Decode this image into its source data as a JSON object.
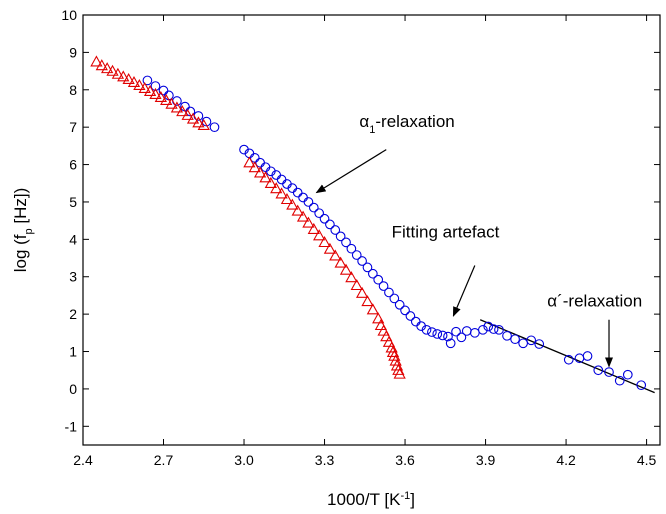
{
  "chart_data": {
    "type": "scatter",
    "xlabel": "1000/T [K",
    "xlabel_sup": "-1",
    "xlabel_tail": "]",
    "ylabel_pre": "log (f",
    "ylabel_sub": "p",
    "ylabel_post": " [Hz])",
    "xlim": [
      2.4,
      4.55
    ],
    "ylim": [
      -1.5,
      10
    ],
    "x_ticks": [
      "2.4",
      "2.7",
      "3.0",
      "3.3",
      "3.6",
      "3.9",
      "4.2",
      "4.5"
    ],
    "y_ticks": [
      "-1",
      "0",
      "1",
      "2",
      "3",
      "4",
      "5",
      "6",
      "7",
      "8",
      "9",
      "10"
    ],
    "grid": false,
    "series": [
      {
        "marker": "circle",
        "color": "#0000dd",
        "x": [
          2.64,
          2.67,
          2.7,
          2.72,
          2.75,
          2.78,
          2.8,
          2.83,
          2.86,
          2.89,
          3.0,
          3.02,
          3.04,
          3.06,
          3.08,
          3.1,
          3.12,
          3.14,
          3.16,
          3.18,
          3.2,
          3.22,
          3.24,
          3.26,
          3.28,
          3.3,
          3.32,
          3.34,
          3.36,
          3.38,
          3.4,
          3.42,
          3.44,
          3.46,
          3.48,
          3.5,
          3.52,
          3.54,
          3.56,
          3.58,
          3.6,
          3.62,
          3.64,
          3.66,
          3.68,
          3.7,
          3.72,
          3.74,
          3.76,
          3.77,
          3.79,
          3.81,
          3.83,
          3.86,
          3.89,
          3.91,
          3.93,
          3.95,
          3.98,
          4.01,
          4.04,
          4.07,
          4.1,
          4.21,
          4.25,
          4.28,
          4.32,
          4.36,
          4.4,
          4.43,
          4.48
        ],
        "y": [
          8.25,
          8.1,
          7.98,
          7.85,
          7.7,
          7.55,
          7.42,
          7.3,
          7.15,
          7.0,
          6.4,
          6.3,
          6.18,
          6.05,
          5.93,
          5.82,
          5.72,
          5.6,
          5.48,
          5.37,
          5.25,
          5.12,
          5.0,
          4.85,
          4.7,
          4.55,
          4.4,
          4.25,
          4.08,
          3.92,
          3.75,
          3.58,
          3.42,
          3.25,
          3.08,
          2.92,
          2.75,
          2.58,
          2.42,
          2.25,
          2.1,
          1.95,
          1.8,
          1.68,
          1.58,
          1.52,
          1.47,
          1.43,
          1.4,
          1.22,
          1.53,
          1.38,
          1.55,
          1.5,
          1.58,
          1.67,
          1.6,
          1.58,
          1.42,
          1.33,
          1.22,
          1.3,
          1.2,
          0.78,
          0.82,
          0.88,
          0.5,
          0.45,
          0.22,
          0.38,
          0.1
        ]
      },
      {
        "marker": "triangle",
        "color": "#e00000",
        "x": [
          2.45,
          2.47,
          2.49,
          2.51,
          2.53,
          2.55,
          2.57,
          2.59,
          2.61,
          2.63,
          2.65,
          2.67,
          2.69,
          2.71,
          2.73,
          2.75,
          2.77,
          2.79,
          2.81,
          2.83,
          2.85,
          3.02,
          3.04,
          3.06,
          3.08,
          3.1,
          3.12,
          3.14,
          3.16,
          3.18,
          3.2,
          3.22,
          3.24,
          3.26,
          3.28,
          3.3,
          3.32,
          3.34,
          3.36,
          3.38,
          3.4,
          3.42,
          3.44,
          3.46,
          3.48,
          3.5,
          3.51,
          3.52,
          3.53,
          3.54,
          3.55,
          3.555,
          3.56,
          3.565,
          3.57,
          3.575,
          3.58
        ],
        "y": [
          8.75,
          8.65,
          8.57,
          8.5,
          8.42,
          8.35,
          8.28,
          8.2,
          8.12,
          8.04,
          7.96,
          7.88,
          7.8,
          7.72,
          7.62,
          7.52,
          7.42,
          7.32,
          7.22,
          7.12,
          7.05,
          6.05,
          5.92,
          5.78,
          5.65,
          5.5,
          5.36,
          5.22,
          5.07,
          4.92,
          4.76,
          4.6,
          4.44,
          4.27,
          4.1,
          3.92,
          3.74,
          3.56,
          3.37,
          3.18,
          2.98,
          2.77,
          2.56,
          2.34,
          2.12,
          1.88,
          1.7,
          1.55,
          1.4,
          1.25,
          1.1,
          0.98,
          0.88,
          0.75,
          0.62,
          0.5,
          0.4
        ]
      }
    ],
    "fit_line": {
      "color": "#000000",
      "x": [
        3.88,
        4.53
      ],
      "y": [
        1.85,
        -0.1
      ]
    },
    "annotations": [
      {
        "id": "alpha1",
        "greek": "α",
        "sub": "1",
        "text": "-relaxation",
        "tx": 3.43,
        "ty": 7.0,
        "arrow_from": [
          3.53,
          6.4
        ],
        "arrow_to": [
          3.27,
          5.25
        ]
      },
      {
        "id": "fitting",
        "greek": "",
        "sub": "",
        "text": "Fitting artefact",
        "tx": 3.55,
        "ty": 4.05,
        "arrow_from": [
          3.86,
          3.3
        ],
        "arrow_to": [
          3.78,
          1.95
        ]
      },
      {
        "id": "alphaprime",
        "greek": "α",
        "sub": "",
        "text": "´-relaxation",
        "tx": 4.13,
        "ty": 2.2,
        "arrow_from": [
          4.36,
          1.85
        ],
        "arrow_to": [
          4.36,
          0.6
        ]
      }
    ]
  }
}
